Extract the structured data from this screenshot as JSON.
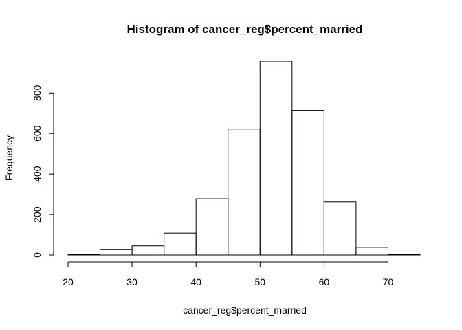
{
  "chart_data": {
    "type": "histogram",
    "title": "Histogram of cancer_reg$percent_married",
    "xlabel": "cancer_reg$percent_married",
    "ylabel": "Frequency",
    "bins": [
      {
        "x0": 20,
        "x1": 25,
        "count": 2
      },
      {
        "x0": 25,
        "x1": 30,
        "count": 28
      },
      {
        "x0": 30,
        "x1": 35,
        "count": 45
      },
      {
        "x0": 35,
        "x1": 40,
        "count": 108
      },
      {
        "x0": 40,
        "x1": 45,
        "count": 278
      },
      {
        "x0": 45,
        "x1": 50,
        "count": 622
      },
      {
        "x0": 50,
        "x1": 55,
        "count": 957
      },
      {
        "x0": 55,
        "x1": 60,
        "count": 714
      },
      {
        "x0": 60,
        "x1": 65,
        "count": 262
      },
      {
        "x0": 65,
        "x1": 70,
        "count": 37
      },
      {
        "x0": 70,
        "x1": 75,
        "count": 2
      }
    ],
    "xticks": [
      20,
      30,
      40,
      50,
      60,
      70
    ],
    "yticks": [
      0,
      200,
      400,
      600,
      800
    ],
    "xlim": [
      20,
      75
    ],
    "ylim": [
      0,
      957
    ],
    "grid": false
  }
}
